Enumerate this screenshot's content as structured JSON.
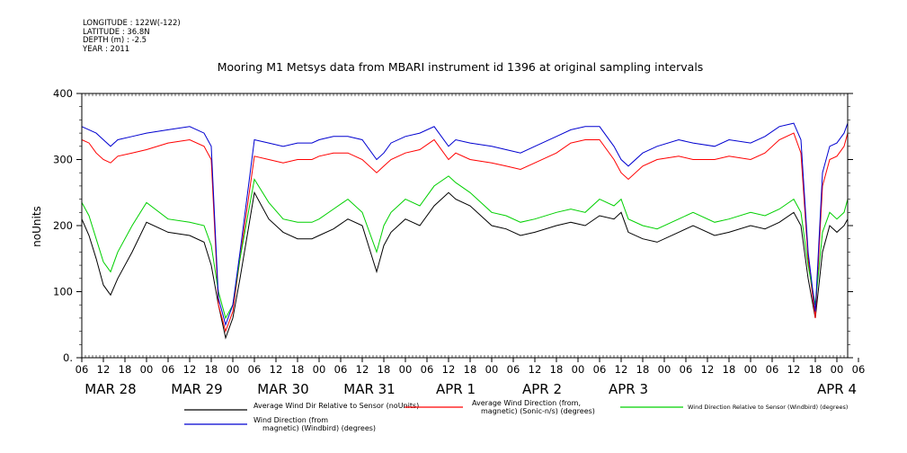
{
  "metadata": {
    "longitude": "LONGITUDE : 122W(-122)",
    "latitude": "LATITUDE : 36.8N",
    "depth": "DEPTH (m) : -2.5",
    "year": "YEAR : 2011"
  },
  "chart_data": {
    "type": "line",
    "title": "Mooring M1 Metsys data from MBARI instrument id 1396 at original sampling intervals",
    "ylabel": "noUnits",
    "xlabel": "",
    "ylim": [
      0,
      400
    ],
    "yticks": [
      0,
      100,
      200,
      300,
      400
    ],
    "ytick_labels": [
      "0.",
      "100",
      "200",
      "300",
      "400"
    ],
    "xlim_hours": [
      0,
      213
    ],
    "x_hour_labels": [
      "06",
      "12",
      "18",
      "00",
      "06",
      "12",
      "18",
      "00",
      "06",
      "12",
      "18",
      "00",
      "06",
      "12",
      "18",
      "00",
      "06",
      "12",
      "18",
      "00",
      "06",
      "12",
      "18",
      "00",
      "06",
      "12",
      "18",
      "00",
      "06",
      "12",
      "18",
      "00",
      "06",
      "12",
      "18",
      "00",
      "06"
    ],
    "x_day_labels": [
      "MAR 28",
      "MAR 29",
      "MAR 30",
      "MAR 31",
      "APR  1",
      "APR  2",
      "APR  3",
      "APR  4"
    ],
    "grid": false,
    "legend_position": "bottom",
    "series": [
      {
        "name": "Average Wind Dir Relative to Sensor (noUnits)",
        "color": "#000000",
        "x": [
          0,
          2,
          4,
          6,
          8,
          10,
          14,
          18,
          24,
          30,
          34,
          36,
          38,
          40,
          42,
          44,
          48,
          52,
          56,
          60,
          64,
          66,
          70,
          74,
          78,
          82,
          84,
          86,
          90,
          94,
          98,
          102,
          104,
          108,
          114,
          118,
          122,
          126,
          132,
          136,
          140,
          144,
          148,
          150,
          152,
          156,
          160,
          166,
          170,
          176,
          180,
          186,
          190,
          194,
          198,
          200,
          202,
          204,
          206,
          208,
          210,
          212,
          213
        ],
        "y": [
          210,
          185,
          150,
          110,
          95,
          120,
          160,
          205,
          190,
          185,
          175,
          140,
          80,
          30,
          60,
          120,
          250,
          210,
          190,
          180,
          180,
          185,
          195,
          210,
          200,
          130,
          170,
          190,
          210,
          200,
          230,
          250,
          240,
          230,
          200,
          195,
          185,
          190,
          200,
          205,
          200,
          215,
          210,
          220,
          190,
          180,
          175,
          190,
          200,
          185,
          190,
          200,
          195,
          205,
          220,
          200,
          120,
          60,
          160,
          200,
          190,
          200,
          210
        ]
      },
      {
        "name": "Average Wind Direction (from,\nmagnetic) (Sonic-n/s) (degrees)",
        "color": "#ff0000",
        "x": [
          0,
          2,
          4,
          6,
          8,
          10,
          14,
          18,
          24,
          30,
          34,
          36,
          38,
          40,
          42,
          44,
          48,
          52,
          56,
          60,
          64,
          66,
          70,
          74,
          78,
          82,
          84,
          86,
          90,
          94,
          98,
          102,
          104,
          108,
          114,
          118,
          122,
          126,
          132,
          136,
          140,
          144,
          148,
          150,
          152,
          156,
          160,
          166,
          170,
          176,
          180,
          186,
          190,
          194,
          198,
          200,
          202,
          204,
          206,
          208,
          210,
          212,
          213
        ],
        "y": [
          330,
          325,
          310,
          300,
          295,
          305,
          310,
          315,
          325,
          330,
          320,
          300,
          80,
          40,
          70,
          150,
          305,
          300,
          295,
          300,
          300,
          305,
          310,
          310,
          300,
          280,
          290,
          300,
          310,
          315,
          330,
          300,
          310,
          300,
          295,
          290,
          285,
          295,
          310,
          325,
          330,
          330,
          300,
          280,
          270,
          290,
          300,
          305,
          300,
          300,
          305,
          300,
          310,
          330,
          340,
          310,
          150,
          60,
          260,
          300,
          305,
          320,
          340
        ]
      },
      {
        "name": "Wind Direction Relative to Sensor (Windbird) (degrees)",
        "color": "#00d000",
        "x": [
          0,
          2,
          4,
          6,
          8,
          10,
          14,
          18,
          24,
          30,
          34,
          36,
          38,
          40,
          42,
          44,
          48,
          52,
          56,
          60,
          64,
          66,
          70,
          74,
          78,
          82,
          84,
          86,
          90,
          94,
          98,
          102,
          104,
          108,
          114,
          118,
          122,
          126,
          132,
          136,
          140,
          144,
          148,
          150,
          152,
          156,
          160,
          166,
          170,
          176,
          180,
          186,
          190,
          194,
          198,
          200,
          202,
          204,
          206,
          208,
          210,
          212,
          213
        ],
        "y": [
          235,
          215,
          180,
          145,
          130,
          160,
          200,
          235,
          210,
          205,
          200,
          170,
          100,
          60,
          80,
          150,
          270,
          235,
          210,
          205,
          205,
          210,
          225,
          240,
          220,
          160,
          200,
          220,
          240,
          230,
          260,
          275,
          265,
          250,
          220,
          215,
          205,
          210,
          220,
          225,
          220,
          240,
          230,
          240,
          210,
          200,
          195,
          210,
          220,
          205,
          210,
          220,
          215,
          225,
          240,
          220,
          140,
          80,
          190,
          220,
          210,
          220,
          240
        ]
      },
      {
        "name": "Wind Direction (from\nmagnetic) (Windbird) (degrees)",
        "color": "#0000d0",
        "x": [
          0,
          2,
          4,
          6,
          8,
          10,
          14,
          18,
          24,
          30,
          34,
          36,
          38,
          40,
          42,
          44,
          48,
          52,
          56,
          60,
          64,
          66,
          70,
          74,
          78,
          82,
          84,
          86,
          90,
          94,
          98,
          102,
          104,
          108,
          114,
          118,
          122,
          126,
          132,
          136,
          140,
          144,
          148,
          150,
          152,
          156,
          160,
          166,
          170,
          176,
          180,
          186,
          190,
          194,
          198,
          200,
          202,
          204,
          206,
          208,
          210,
          212,
          213
        ],
        "y": [
          350,
          345,
          340,
          330,
          320,
          330,
          335,
          340,
          345,
          350,
          340,
          320,
          90,
          50,
          80,
          160,
          330,
          325,
          320,
          325,
          325,
          330,
          335,
          335,
          330,
          300,
          310,
          325,
          335,
          340,
          350,
          320,
          330,
          325,
          320,
          315,
          310,
          320,
          335,
          345,
          350,
          350,
          320,
          300,
          290,
          310,
          320,
          330,
          325,
          320,
          330,
          325,
          335,
          350,
          355,
          330,
          160,
          70,
          280,
          320,
          325,
          340,
          355
        ]
      }
    ]
  }
}
